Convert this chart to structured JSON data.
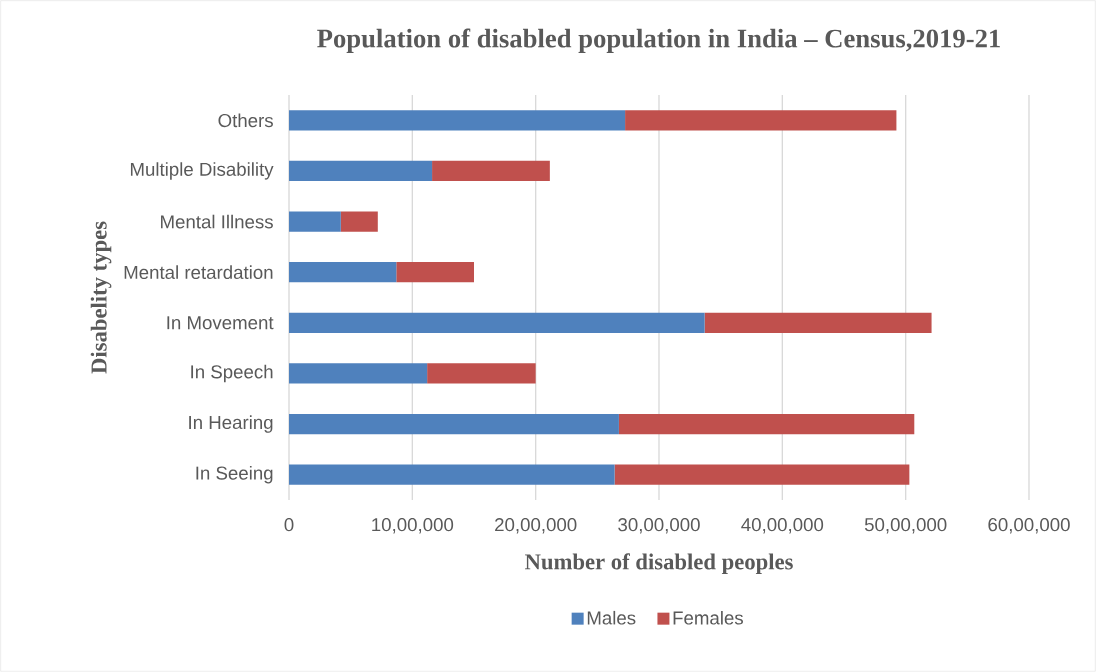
{
  "chart_data": {
    "type": "bar",
    "orientation": "horizontal",
    "stacked": true,
    "title": "Population of disabled population in India – Census,2019-21",
    "xlabel": "Number of disabled peoples",
    "ylabel": "Disabelity types",
    "categories": [
      "Others",
      "Multiple Disability",
      "Mental Illness",
      "Mental retardation",
      "In Movement",
      "In Speech",
      "In Hearing",
      "In Seeing"
    ],
    "series": [
      {
        "name": "Males",
        "color": "#4f81bd",
        "values": [
          2725000,
          1160000,
          420000,
          870000,
          3370000,
          1120000,
          2675000,
          2640000
        ]
      },
      {
        "name": "Females",
        "color": "#c0504d",
        "values": [
          2200000,
          955000,
          300000,
          630000,
          1840000,
          880000,
          2395000,
          2390000
        ]
      }
    ],
    "xlim": [
      0,
      6000000
    ],
    "xticks": [
      0,
      {
        "value": 1000000,
        "label": "10,00,000"
      },
      {
        "value": 2000000,
        "label": "20,00,000"
      },
      {
        "value": 3000000,
        "label": "30,00,000"
      },
      {
        "value": 4000000,
        "label": "40,00,000"
      },
      {
        "value": 5000000,
        "label": "50,00,000"
      },
      {
        "value": 6000000,
        "label": "60,00,000"
      }
    ],
    "grid": "x",
    "legend": "bottom"
  }
}
